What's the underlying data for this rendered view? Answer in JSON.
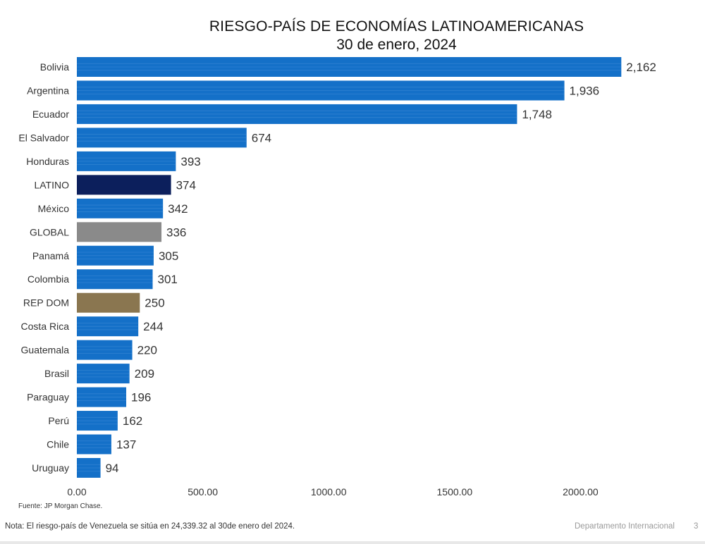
{
  "chart_data": {
    "type": "bar",
    "orientation": "horizontal",
    "title": "RIESGO-PAÍS DE ECONOMÍAS LATINOAMERICANAS",
    "subtitle": "30 de enero, 2024",
    "categories": [
      "Bolivia",
      "Argentina",
      "Ecuador",
      "El Salvador",
      "Honduras",
      "LATINO",
      "México",
      "GLOBAL",
      "Panamá",
      "Colombia",
      "REP DOM",
      "Costa Rica",
      "Guatemala",
      "Brasil",
      "Paraguay",
      "Perú",
      "Chile",
      "Uruguay"
    ],
    "values": [
      2162,
      1936,
      1748,
      674,
      393,
      374,
      342,
      336,
      305,
      301,
      250,
      244,
      220,
      209,
      196,
      162,
      137,
      94
    ],
    "value_labels": [
      "2,162",
      "1,936",
      "1,748",
      "674",
      "393",
      "374",
      "342",
      "336",
      "305",
      "301",
      "250",
      "244",
      "220",
      "209",
      "196",
      "162",
      "137",
      "94"
    ],
    "xlim": [
      0,
      2150
    ],
    "xticks": [
      0,
      500,
      1000,
      1500,
      2000
    ],
    "xtick_labels": [
      "0.00",
      "500.00",
      "1000.00",
      "1500.00",
      "2000.00"
    ],
    "xlabel": "",
    "ylabel": "",
    "grid": false,
    "colors": {
      "default": "#1470c8",
      "LATINO": "#0c1f5c",
      "GLOBAL": "#8a8a8a",
      "REP DOM": "#8a7650"
    }
  },
  "footer": {
    "source": "Fuente: JP Morgan Chase.",
    "note": "Nota: El riesgo-país de Venezuela se sitúa en 24,339.32 al 30de enero del 2024.",
    "department": "Departamento Internacional",
    "page": "3"
  }
}
